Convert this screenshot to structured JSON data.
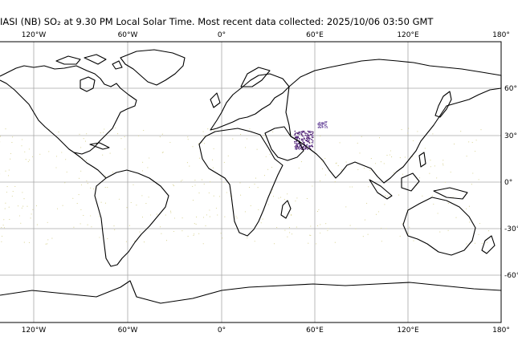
{
  "title": "IASI (NB) SO₂ at 9.30 PM Local Solar Time. Most recent data collected: 2025/10/06 03:50 GMT",
  "map": {
    "projection": "PlateCarree",
    "lon_range": [
      -180,
      180
    ],
    "lat_range": [
      -90,
      90
    ],
    "gridlines": true,
    "coastlines": true,
    "colors": {
      "coast": "#000000",
      "grid": "#a8a8a8",
      "so2_high": "#4b1a6e",
      "so2_mid": "#7b5ea7",
      "so2_low": "#d5cf8a"
    }
  },
  "axes": {
    "top_ticks": [
      "120°W",
      "60°W",
      "0°",
      "60°E",
      "120°E",
      "180°"
    ],
    "bottom_ticks": [
      "120°W",
      "60°W",
      "0°",
      "60°E",
      "120°E",
      "180°"
    ],
    "right_ticks": [
      "60°",
      "30°",
      "0°",
      "-30°",
      "-60°"
    ]
  },
  "so2_hotspots": [
    {
      "lon": 53,
      "lat": 27,
      "level": "high"
    },
    {
      "lon": 65,
      "lat": 37,
      "level": "mid"
    }
  ]
}
